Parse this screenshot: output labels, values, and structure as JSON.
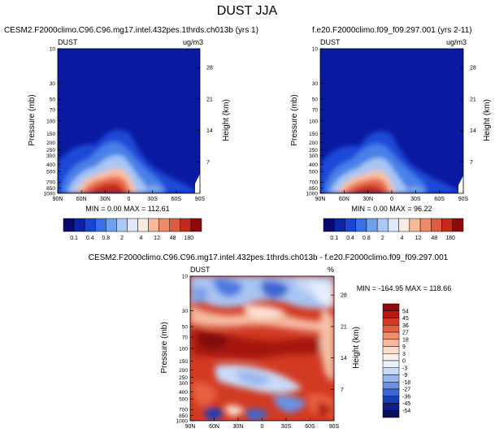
{
  "figure_title": "DUST JJA",
  "panels": [
    {
      "title": "CESM2.F2000climo.C96.C96.mg17.intel.432pes.1thrds.ch013b (yrs 1)",
      "left_label": "DUST",
      "right_label": "ug/m3",
      "stats": "MIN =   0.00  MAX = 112.61"
    },
    {
      "title": "f.e20.F2000climo.f09_f09.297.001 (yrs 2-11)",
      "left_label": "DUST",
      "right_label": "ug/m3",
      "stats": "MIN =   0.00  MAX =  96.22"
    },
    {
      "title": "CESM2.F2000climo.C96.C96.mg17.intel.432pes.1thrds.ch013b - f.e20.F2000climo.f09_f09.297.001",
      "left_label": "DUST",
      "right_label": "%",
      "stats": "MIN = -164.95  MAX = 118.66"
    }
  ],
  "axis_labels": {
    "ylabel": "Pressure (mb)",
    "y2label": "Height (km)"
  },
  "chart_data": [
    {
      "type": "heatmap",
      "title": "CESM2.F2000climo.C96.C96.mg17.intel.432pes.1thrds.ch013b (yrs 1)",
      "xlabel": "",
      "ylabel": "Pressure (mb)",
      "y2label": "Height (km)",
      "x_ticks": [
        "90N",
        "60N",
        "30N",
        "0",
        "30S",
        "60S",
        "90S"
      ],
      "y_ticks": [
        "10",
        "30",
        "50",
        "70",
        "100",
        "150",
        "200",
        "250",
        "300",
        "400",
        "500",
        "700",
        "850",
        "1000"
      ],
      "y2_ticks": [
        "28",
        "21",
        "14",
        "7"
      ],
      "units": "ug/m3",
      "min": 0.0,
      "max": 112.61,
      "colorbar_labels": [
        "0.1",
        "0.4",
        "0.8",
        "2",
        "4",
        "12",
        "48",
        "180"
      ]
    },
    {
      "type": "heatmap",
      "title": "f.e20.F2000climo.f09_f09.297.001 (yrs 2-11)",
      "xlabel": "",
      "ylabel": "Pressure (mb)",
      "y2label": "Height (km)",
      "x_ticks": [
        "90N",
        "60N",
        "30N",
        "0",
        "30S",
        "60S",
        "90S"
      ],
      "y_ticks": [
        "10",
        "30",
        "50",
        "70",
        "100",
        "150",
        "200",
        "250",
        "300",
        "400",
        "500",
        "700",
        "850",
        "1000"
      ],
      "y2_ticks": [
        "28",
        "21",
        "14",
        "7"
      ],
      "units": "ug/m3",
      "min": 0.0,
      "max": 96.22,
      "colorbar_labels": [
        "0.1",
        "0.4",
        "0.8",
        "2",
        "4",
        "12",
        "48",
        "180"
      ]
    },
    {
      "type": "heatmap",
      "title": "CESM2.F2000climo.C96.C96.mg17.intel.432pes.1thrds.ch013b - f.e20.F2000climo.f09_f09.297.001",
      "xlabel": "",
      "ylabel": "Pressure (mb)",
      "y2label": "Height (km)",
      "x_ticks": [
        "90N",
        "60N",
        "30N",
        "0",
        "30S",
        "60S",
        "90S"
      ],
      "y_ticks": [
        "10",
        "30",
        "50",
        "70",
        "100",
        "150",
        "200",
        "250",
        "300",
        "400",
        "500",
        "700",
        "850",
        "1000"
      ],
      "y2_ticks": [
        "28",
        "21",
        "14",
        "7"
      ],
      "units": "%",
      "min": -164.95,
      "max": 118.66,
      "colorbar_labels": [
        "54",
        "45",
        "36",
        "27",
        "18",
        "9",
        "3",
        "0",
        "-3",
        "-9",
        "-18",
        "-27",
        "-36",
        "-45",
        "-54"
      ]
    }
  ],
  "colors": {
    "abs_scale": [
      "#0a0a6e",
      "#0c24a8",
      "#1a46d6",
      "#3a70e6",
      "#6fa0ee",
      "#a9c9f6",
      "#dfe9fb",
      "#fbeadf",
      "#f6b99a",
      "#ee8a68",
      "#de5a40",
      "#c42a1c",
      "#8e0a0a"
    ],
    "diff_scale": [
      "#8e0a0a",
      "#b41a12",
      "#d63a24",
      "#e8603e",
      "#f08e6e",
      "#f6b99c",
      "#fbdccb",
      "#fdf0e8",
      "#e8f0fc",
      "#c8daf6",
      "#9ab8ee",
      "#6a92e2",
      "#3c68d2",
      "#1a40b6",
      "#0c2088",
      "#08105a"
    ],
    "background_field": "#0a1aa0"
  }
}
